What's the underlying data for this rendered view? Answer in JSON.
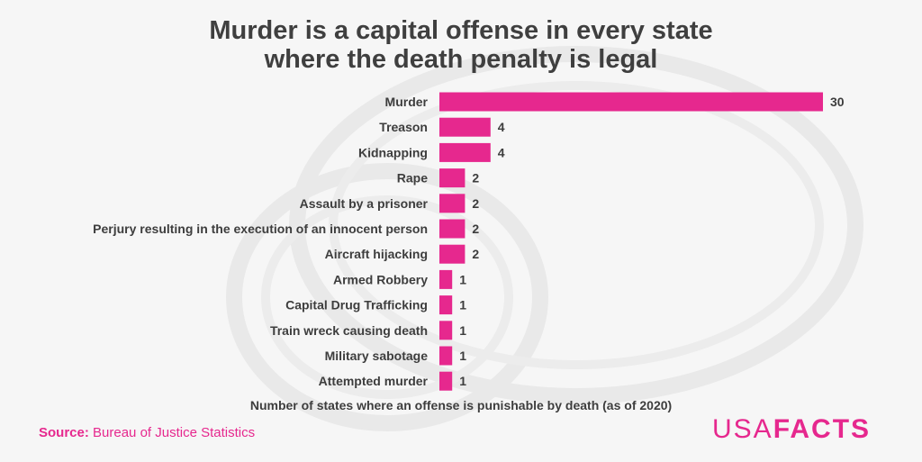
{
  "title_line1": "Murder is a capital offense in every state",
  "title_line2": "where the death penalty is legal",
  "source_label": "Source:",
  "source_text": "Bureau of Justice Statistics",
  "logo_part1": "USA",
  "logo_part2": "FACTS",
  "colors": {
    "bar": "#e6288e",
    "accent": "#e6288e",
    "text": "#3d3d3d"
  },
  "chart_data": {
    "type": "bar",
    "orientation": "horizontal",
    "title": "Murder is a capital offense in every state where the death penalty is legal",
    "xlabel": "Number of states where an offense is punishable by death (as of 2020)",
    "ylabel": "",
    "categories": [
      "Murder",
      "Treason",
      "Kidnapping",
      "Rape",
      "Assault by a prisoner",
      "Perjury resulting in the execution of an innocent person",
      "Aircraft hijacking",
      "Armed Robbery",
      "Capital Drug Trafficking",
      "Train wreck causing death",
      "Military sabotage",
      "Attempted murder"
    ],
    "values": [
      30,
      4,
      4,
      2,
      2,
      2,
      2,
      1,
      1,
      1,
      1,
      1
    ],
    "xlim": [
      0,
      30
    ],
    "grid": false,
    "data_labels": true
  }
}
